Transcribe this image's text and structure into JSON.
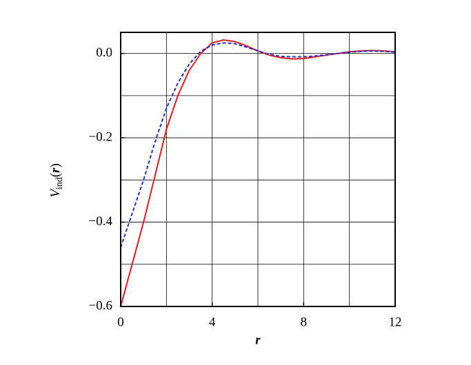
{
  "chart_data": {
    "type": "line",
    "xlabel": "r",
    "ylabel": [
      "V",
      "ind",
      "(",
      "r",
      ")"
    ],
    "x": [
      0,
      0.5,
      1,
      1.5,
      2,
      2.5,
      3,
      3.5,
      4,
      4.5,
      5,
      5.5,
      6,
      6.5,
      7,
      7.5,
      8,
      8.5,
      9,
      9.5,
      10,
      10.5,
      11,
      11.5,
      12
    ],
    "series": [
      {
        "color": "#e41a1c",
        "dash": "solid",
        "values": [
          -0.6,
          -0.5,
          -0.4,
          -0.29,
          -0.18,
          -0.1,
          -0.04,
          0.0,
          0.025,
          0.032,
          0.028,
          0.018,
          0.006,
          -0.004,
          -0.01,
          -0.013,
          -0.012,
          -0.008,
          -0.004,
          0.0,
          0.004,
          0.006,
          0.007,
          0.006,
          0.004
        ]
      },
      {
        "color": "#1f2fd0",
        "dash": "dashed",
        "values": [
          -0.46,
          -0.38,
          -0.3,
          -0.21,
          -0.13,
          -0.07,
          -0.025,
          0.005,
          0.02,
          0.025,
          0.023,
          0.015,
          0.006,
          -0.002,
          -0.007,
          -0.008,
          -0.008,
          -0.006,
          -0.003,
          0.0,
          0.003,
          0.005,
          0.006,
          0.005,
          0.003
        ]
      }
    ],
    "xlim": [
      0,
      12
    ],
    "ylim": [
      -0.6,
      0.05
    ],
    "xticks": [
      0,
      4,
      8,
      12
    ],
    "yticks": [
      {
        "value": -0.6,
        "label": "−0.6"
      },
      {
        "value": -0.4,
        "label": "−0.4"
      },
      {
        "value": -0.2,
        "label": "−0.2"
      },
      {
        "value": 0,
        "label": "0.0"
      }
    ],
    "xgrid": [
      2,
      4,
      6,
      8,
      10
    ],
    "ygrid": [
      -0.5,
      -0.4,
      -0.3,
      -0.2,
      -0.1,
      0
    ]
  }
}
